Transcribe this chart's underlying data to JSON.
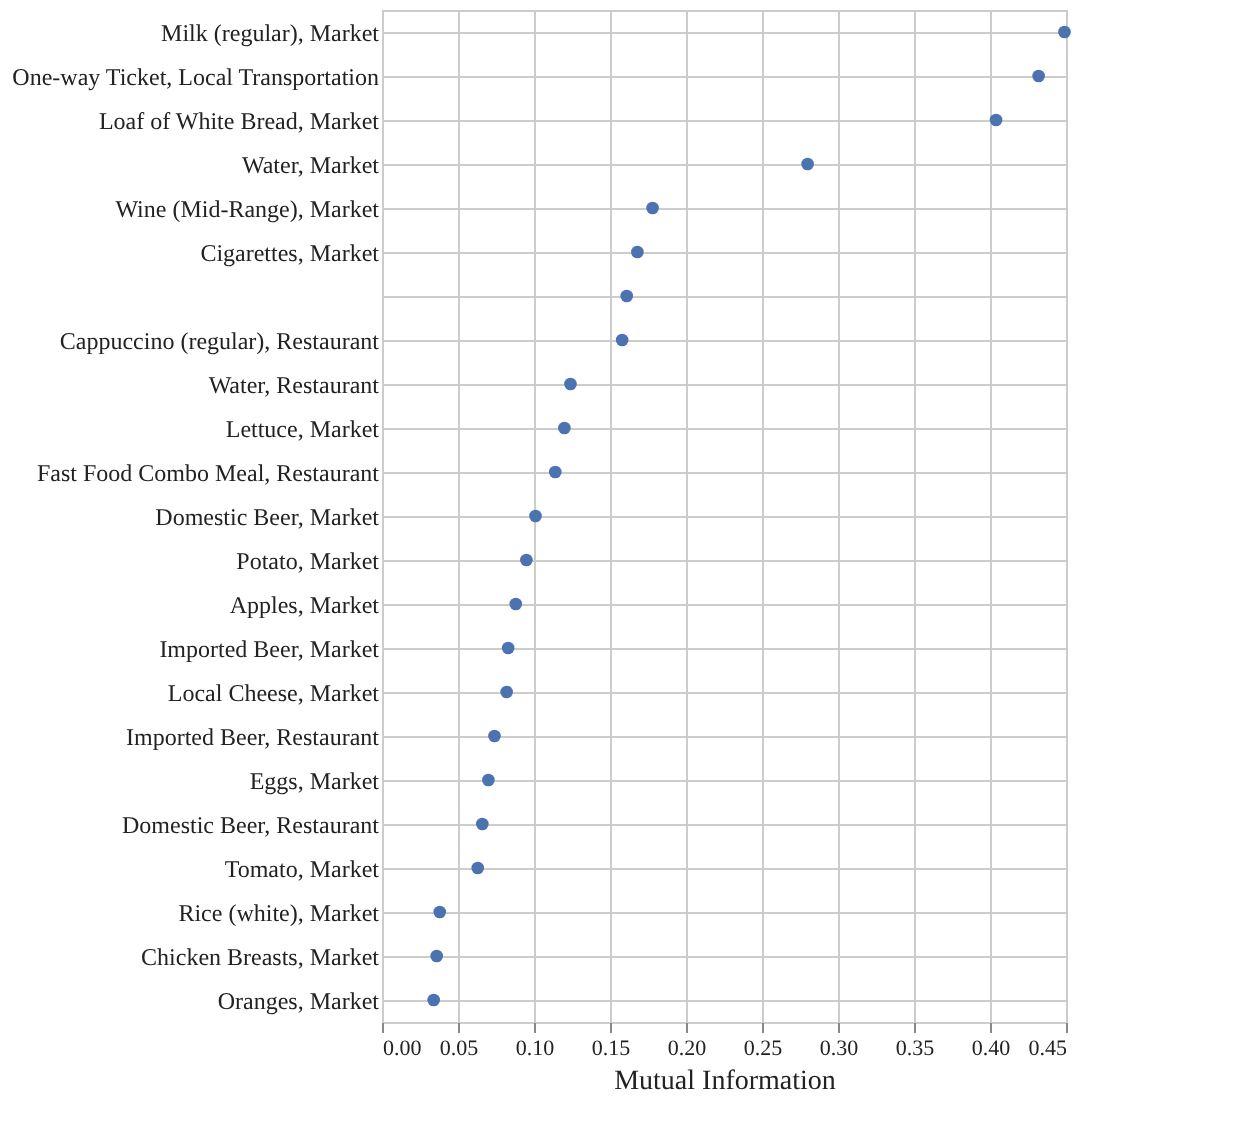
{
  "chart_data": {
    "type": "scatter",
    "xlabel": "Mutual Information",
    "orientation": "horizontal",
    "categories": [
      "Milk (regular), Market",
      "One-way Ticket, Local Transportation",
      "Loaf of White Bread, Market",
      "Water, Market",
      "Wine (Mid-Range), Market",
      "Cigarettes, Market",
      null,
      "Cappuccino (regular), Restaurant",
      "Water, Restaurant",
      "Lettuce, Market",
      "Fast Food Combo Meal, Restaurant",
      "Domestic Beer, Market",
      "Potato, Market",
      "Apples, Market",
      "Imported Beer, Market",
      "Local Cheese, Market",
      "Imported Beer, Restaurant",
      "Eggs, Market",
      "Domestic Beer, Restaurant",
      "Tomato, Market",
      "Rice (white), Market",
      "Chicken Breasts, Market",
      "Oranges, Market"
    ],
    "values": [
      0.449,
      0.432,
      0.404,
      0.28,
      0.178,
      0.168,
      0.161,
      0.158,
      0.124,
      0.12,
      0.114,
      0.101,
      0.095,
      0.088,
      0.083,
      0.082,
      0.074,
      0.07,
      0.066,
      0.063,
      0.038,
      0.036,
      0.034
    ],
    "color": "#4c72b0",
    "xlim": [
      0,
      0.45
    ],
    "xticks": [
      {
        "value": 0,
        "label": "0.00"
      },
      0.05,
      {
        "value": 0.1,
        "label": "0.10"
      },
      0.15,
      {
        "value": 0.2,
        "label": "0.20"
      },
      0.25,
      {
        "value": 0.3,
        "label": "0.30"
      },
      0.35,
      {
        "value": 0.4,
        "label": "0.40"
      },
      0.45
    ],
    "grid": true,
    "marker": "circle"
  }
}
